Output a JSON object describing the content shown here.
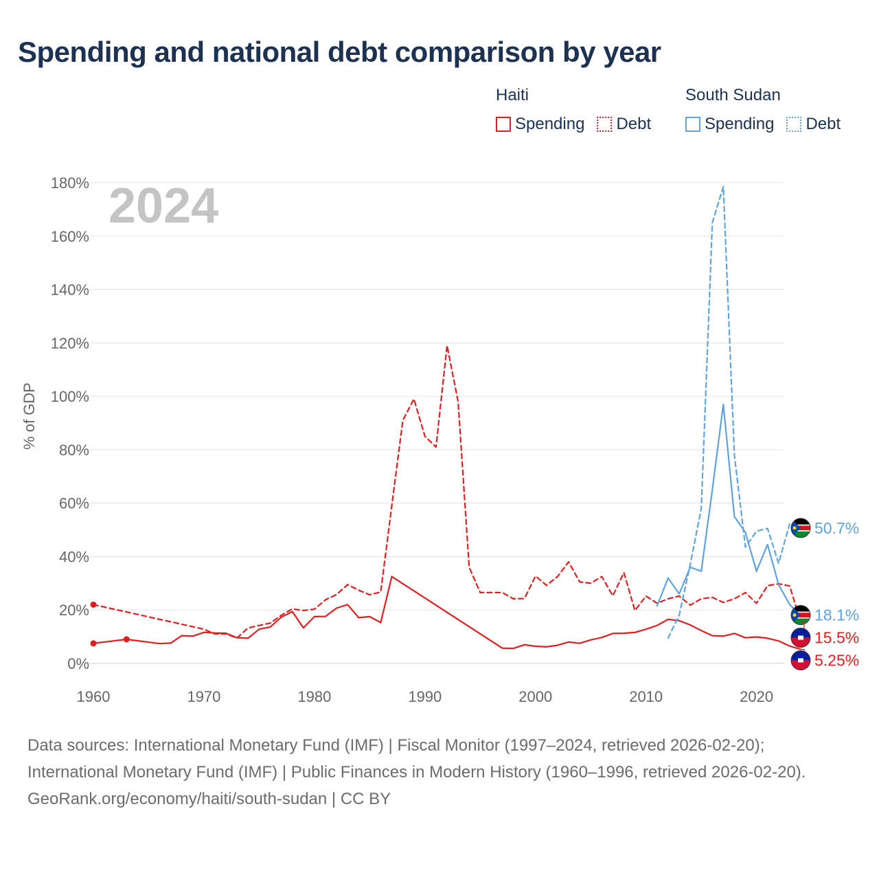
{
  "title": "Spending and national debt comparison by year",
  "year_label": "2024",
  "legend": [
    {
      "country": "Haiti",
      "items": [
        {
          "label": "Spending",
          "style": "solid",
          "color": "#e01e1e"
        },
        {
          "label": "Debt",
          "style": "dotted",
          "color": "#e01e1e"
        }
      ]
    },
    {
      "country": "South Sudan",
      "items": [
        {
          "label": "Spending",
          "style": "solid",
          "color": "#5ea3e0"
        },
        {
          "label": "Debt",
          "style": "dotted",
          "color": "#5ea3e0"
        }
      ]
    }
  ],
  "footer": {
    "sources": "Data sources: International Monetary Fund (IMF) | Fiscal Monitor (1997–2024, retrieved 2026-02-20); International Monetary Fund (IMF) | Public Finances in Modern History (1960–1996, retrieved 2026-02-20).",
    "credit": "GeoRank.org/economy/haiti/south-sudan | CC BY"
  },
  "chart_data": {
    "type": "line",
    "ylabel": "% of GDP",
    "xlabel": "",
    "xlim": [
      1960,
      2024
    ],
    "ylim": [
      0,
      180
    ],
    "x_ticks": [
      1960,
      1970,
      1980,
      1990,
      2000,
      2010,
      2020
    ],
    "y_ticks": [
      0,
      20,
      40,
      60,
      80,
      100,
      120,
      140,
      160,
      180
    ],
    "y_tick_labels": [
      "0%",
      "20%",
      "40%",
      "60%",
      "80%",
      "100%",
      "120%",
      "140%",
      "160%",
      "180%"
    ],
    "colors": {
      "haiti": "#e01e1e",
      "south_sudan": "#5ea3e0"
    },
    "series": [
      {
        "name": "Haiti Spending",
        "key": "haiti_spending",
        "country": "haiti",
        "dash": "solid",
        "points": [
          [
            1960,
            7.5
          ],
          [
            1963,
            9.0
          ],
          [
            1966,
            7.4
          ],
          [
            1967,
            7.6
          ],
          [
            1968,
            10.4
          ],
          [
            1969,
            10.2
          ],
          [
            1970,
            11.6
          ],
          [
            1971,
            11.4
          ],
          [
            1972,
            11.3
          ],
          [
            1973,
            9.6
          ],
          [
            1974,
            9.4
          ],
          [
            1975,
            12.8
          ],
          [
            1976,
            13.6
          ],
          [
            1977,
            17.3
          ],
          [
            1978,
            19.4
          ],
          [
            1979,
            13.3
          ],
          [
            1980,
            17.5
          ],
          [
            1981,
            17.6
          ],
          [
            1982,
            20.7
          ],
          [
            1983,
            22.0
          ],
          [
            1984,
            17.1
          ],
          [
            1985,
            17.5
          ],
          [
            1986,
            15.3
          ],
          [
            1987,
            32.5
          ],
          [
            1997,
            5.7
          ],
          [
            1998,
            5.6
          ],
          [
            1999,
            7.0
          ],
          [
            2000,
            6.4
          ],
          [
            2001,
            6.2
          ],
          [
            2002,
            6.8
          ],
          [
            2003,
            8.0
          ],
          [
            2004,
            7.5
          ],
          [
            2005,
            8.8
          ],
          [
            2006,
            9.7
          ],
          [
            2007,
            11.2
          ],
          [
            2008,
            11.3
          ],
          [
            2009,
            11.6
          ],
          [
            2010,
            12.8
          ],
          [
            2011,
            14.2
          ],
          [
            2012,
            16.5
          ],
          [
            2013,
            16.0
          ],
          [
            2014,
            14.4
          ],
          [
            2015,
            12.3
          ],
          [
            2016,
            10.4
          ],
          [
            2017,
            10.2
          ],
          [
            2018,
            11.2
          ],
          [
            2019,
            9.6
          ],
          [
            2020,
            9.9
          ],
          [
            2021,
            9.4
          ],
          [
            2022,
            8.4
          ],
          [
            2023,
            6.5
          ],
          [
            2024,
            5.25
          ]
        ]
      },
      {
        "name": "Haiti Debt",
        "key": "haiti_debt",
        "country": "haiti",
        "dash": "dashed",
        "points": [
          [
            1960,
            22.0
          ],
          [
            1970,
            12.8
          ],
          [
            1971,
            11.0
          ],
          [
            1972,
            11.0
          ],
          [
            1973,
            9.5
          ],
          [
            1974,
            13.3
          ],
          [
            1975,
            14.2
          ],
          [
            1976,
            15.1
          ],
          [
            1977,
            18.0
          ],
          [
            1978,
            20.4
          ],
          [
            1979,
            19.8
          ],
          [
            1980,
            20.3
          ],
          [
            1981,
            23.8
          ],
          [
            1982,
            25.8
          ],
          [
            1983,
            29.5
          ],
          [
            1984,
            27.4
          ],
          [
            1985,
            25.7
          ],
          [
            1986,
            26.7
          ],
          [
            1987,
            59.0
          ],
          [
            1988,
            91.0
          ],
          [
            1989,
            99.0
          ],
          [
            1990,
            85.0
          ],
          [
            1991,
            81.0
          ],
          [
            1992,
            119.0
          ],
          [
            1993,
            98.0
          ],
          [
            1994,
            36.0
          ],
          [
            1995,
            26.5
          ],
          [
            1996,
            26.5
          ],
          [
            1997,
            26.5
          ],
          [
            1998,
            24.2
          ],
          [
            1999,
            24.3
          ],
          [
            2000,
            32.7
          ],
          [
            2001,
            29.2
          ],
          [
            2002,
            32.5
          ],
          [
            2003,
            38.0
          ],
          [
            2004,
            30.5
          ],
          [
            2005,
            30.0
          ],
          [
            2006,
            32.5
          ],
          [
            2007,
            25.3
          ],
          [
            2008,
            34.0
          ],
          [
            2009,
            19.8
          ],
          [
            2010,
            25.2
          ],
          [
            2011,
            22.5
          ],
          [
            2012,
            24.2
          ],
          [
            2013,
            25.2
          ],
          [
            2014,
            21.8
          ],
          [
            2015,
            24.2
          ],
          [
            2016,
            24.7
          ],
          [
            2017,
            22.8
          ],
          [
            2018,
            24.2
          ],
          [
            2019,
            26.5
          ],
          [
            2020,
            22.5
          ],
          [
            2021,
            29.1
          ],
          [
            2022,
            29.8
          ],
          [
            2023,
            29.0
          ],
          [
            2024,
            15.5
          ]
        ]
      },
      {
        "name": "South Sudan Spending",
        "key": "ssd_spending",
        "country": "south_sudan",
        "dash": "solid",
        "points": [
          [
            2011,
            21.5
          ],
          [
            2012,
            32.0
          ],
          [
            2013,
            26.0
          ],
          [
            2014,
            36.0
          ],
          [
            2015,
            34.5
          ],
          [
            2016,
            65.0
          ],
          [
            2017,
            97.0
          ],
          [
            2018,
            55.0
          ],
          [
            2019,
            49.0
          ],
          [
            2020,
            34.5
          ],
          [
            2021,
            44.5
          ],
          [
            2022,
            29.5
          ],
          [
            2023,
            22.0
          ],
          [
            2024,
            18.1
          ]
        ]
      },
      {
        "name": "South Sudan Debt",
        "key": "ssd_debt",
        "country": "south_sudan",
        "dash": "dashed",
        "points": [
          [
            2012,
            9.5
          ],
          [
            2013,
            18.0
          ],
          [
            2014,
            37.0
          ],
          [
            2015,
            58.0
          ],
          [
            2016,
            165.0
          ],
          [
            2017,
            178.5
          ],
          [
            2018,
            78.0
          ],
          [
            2019,
            43.5
          ],
          [
            2020,
            49.5
          ],
          [
            2021,
            50.5
          ],
          [
            2022,
            37.5
          ],
          [
            2023,
            52.2
          ],
          [
            2024,
            50.7
          ]
        ]
      }
    ],
    "markers": [
      {
        "series": "haiti_spending",
        "x": 1960,
        "y": 7.5
      },
      {
        "series": "haiti_spending",
        "x": 1963,
        "y": 9.0
      },
      {
        "series": "haiti_debt",
        "x": 1960,
        "y": 22.0
      }
    ],
    "end_labels": [
      {
        "text": "50.7%",
        "value": 50.7,
        "flag": "south_sudan",
        "series": "ssd_debt"
      },
      {
        "text": "18.1%",
        "value": 18.1,
        "flag": "south_sudan",
        "series": "ssd_spending"
      },
      {
        "text": "15.5%",
        "value": 15.5,
        "flag": "haiti",
        "series": "haiti_debt"
      },
      {
        "text": "5.25%",
        "value": 5.25,
        "flag": "haiti",
        "series": "haiti_spending"
      }
    ]
  }
}
